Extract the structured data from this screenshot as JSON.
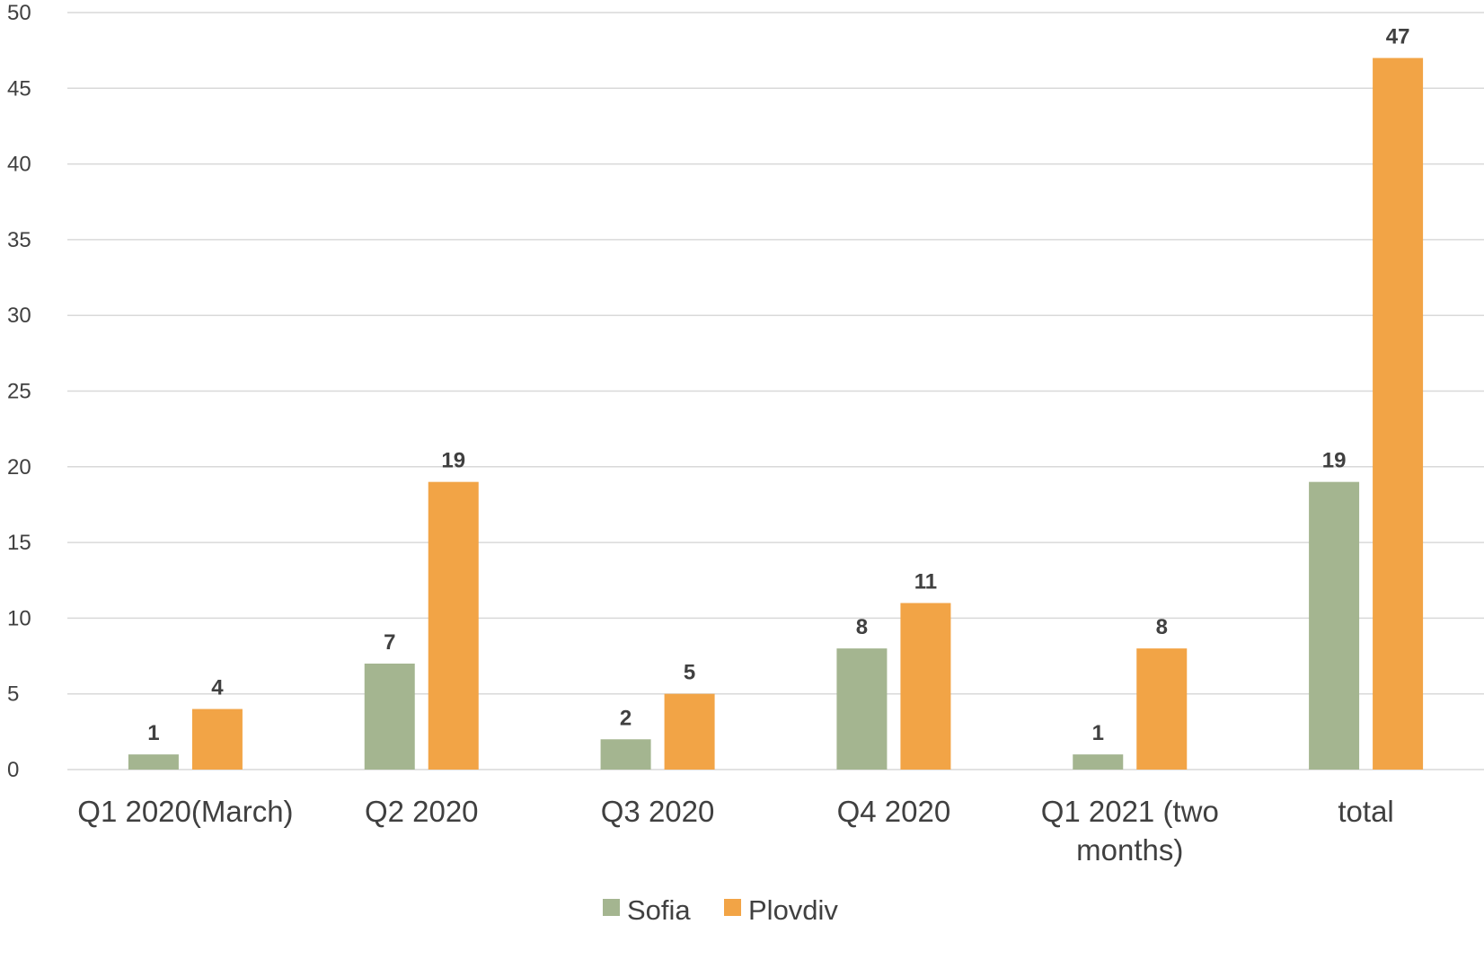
{
  "chart_data": {
    "type": "bar",
    "categories": [
      [
        "Q1 2020(March)"
      ],
      [
        "Q2 2020"
      ],
      [
        "Q3 2020"
      ],
      [
        "Q4 2020"
      ],
      [
        "Q1 2021 (two",
        "months)"
      ],
      [
        "total"
      ]
    ],
    "series": [
      {
        "name": "Sofia",
        "color": "#a4b590",
        "values": [
          1,
          7,
          2,
          8,
          1,
          19
        ]
      },
      {
        "name": "Plovdiv",
        "color": "#f2a446",
        "values": [
          4,
          19,
          5,
          11,
          8,
          47
        ]
      }
    ],
    "ylim": [
      0,
      50
    ],
    "yticks": [
      0,
      5,
      10,
      15,
      20,
      25,
      30,
      35,
      40,
      45,
      50
    ],
    "grid": true,
    "gridColor": "#d9d9d9",
    "legend": "bottom",
    "data_labels": true
  }
}
